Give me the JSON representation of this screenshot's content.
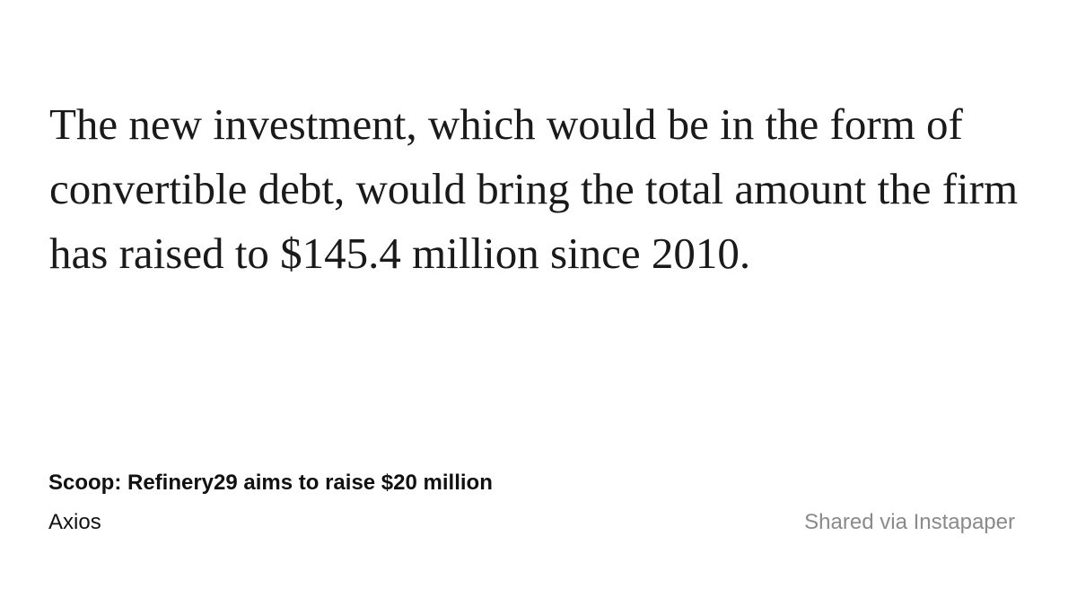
{
  "quote": {
    "text": "The new investment, which would be in the form of convertible debt, would bring the total amount the firm has raised to $145.4 million since 2010."
  },
  "source": {
    "title": "Scoop: Refinery29 aims to raise $20 million",
    "publication": "Axios"
  },
  "footer": {
    "shared_via": "Shared via Instapaper"
  },
  "colors": {
    "background": "#ffffff",
    "text": "#1a1a1a",
    "muted": "#8a8a8a"
  }
}
